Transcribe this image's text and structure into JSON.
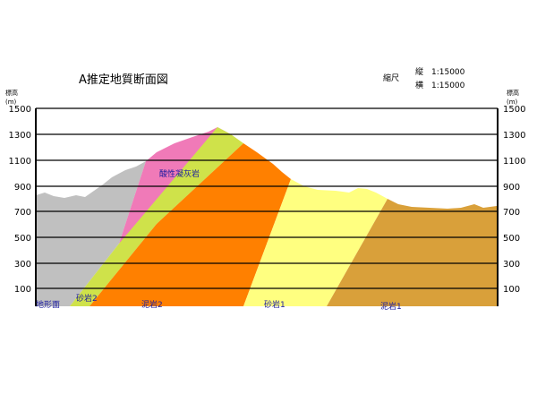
{
  "title": "A推定地質断面図",
  "scale": {
    "label": "縮尺",
    "vertical": "縦　1:15000",
    "horizontal": "横　1:15000"
  },
  "axis": {
    "left_title": "標高",
    "left_unit": "(m)",
    "right_title": "標高",
    "right_unit": "(m)",
    "ticks": [
      100,
      300,
      500,
      700,
      900,
      1100,
      1300,
      1500
    ]
  },
  "labels": {
    "terrain": "地形面",
    "sandstone2": "砂岩2",
    "mudstone2": "泥岩2",
    "tuff": "酸性凝灰岩",
    "sandstone1": "砂岩1",
    "mudstone1": "泥岩1"
  },
  "colors": {
    "gray": "#c0c0c0",
    "pink": "#f07ab8",
    "lime": "#cfe24a",
    "orange": "#ff8000",
    "yellow": "#ffff80",
    "tan": "#d9a03a",
    "label_text": "#1a1aa0"
  }
}
